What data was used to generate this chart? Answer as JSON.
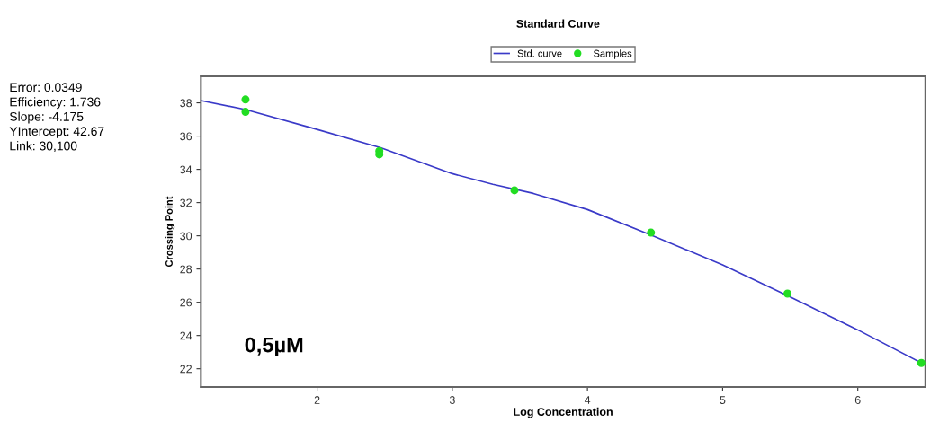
{
  "chart_data": {
    "type": "line",
    "title": "Standard Curve",
    "xlabel": "Log Concentration",
    "ylabel": "Crossing Point",
    "xlim": [
      1.14,
      6.5
    ],
    "xticks": [
      2,
      3,
      4,
      5,
      6
    ],
    "ylim": [
      20.9,
      39.6
    ],
    "yticks": [
      22,
      24,
      26,
      28,
      30,
      32,
      34,
      36,
      38
    ],
    "grid": false,
    "legend": "top",
    "series": [
      {
        "name": "Std. curve",
        "color": "#3a3ac8",
        "marker": "none",
        "line_style": "solid",
        "x": [
          1.14,
          1.47,
          1.97,
          2.47,
          3.0,
          3.3,
          3.6,
          4.0,
          4.47,
          5.0,
          5.48,
          5.99,
          6.47
        ],
        "values": [
          38.14,
          37.6,
          36.47,
          35.3,
          33.74,
          33.1,
          32.55,
          31.58,
          30.05,
          28.25,
          26.4,
          24.38,
          22.35
        ]
      },
      {
        "name": "Samples",
        "type": "scatter",
        "color": "#22dd22",
        "marker": "circle",
        "x": [
          1.47,
          1.47,
          2.46,
          2.46,
          3.46,
          4.47,
          5.48,
          6.47
        ],
        "values": [
          38.2,
          37.46,
          35.1,
          34.9,
          32.74,
          30.19,
          26.52,
          22.35
        ]
      }
    ],
    "annotations": [
      "Error: 0.0349",
      "Efficiency: 1.736",
      "Slope: -4.175",
      "YIntercept: 42.67",
      "Link: 30,100",
      "0,5µM"
    ]
  }
}
